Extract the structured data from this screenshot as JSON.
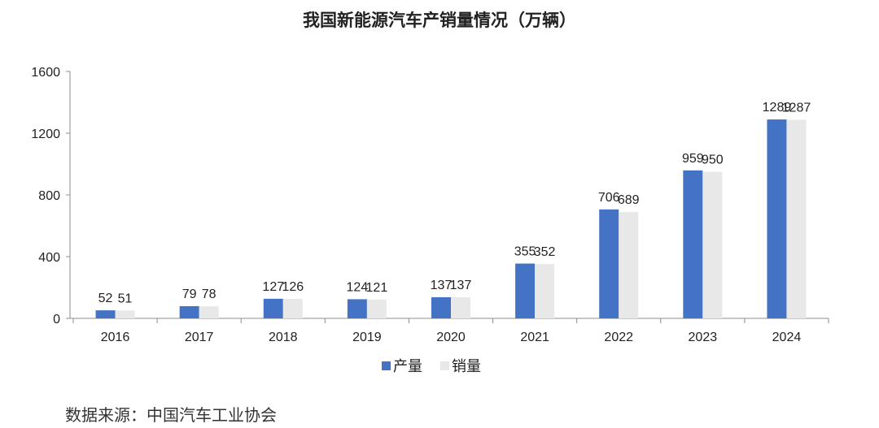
{
  "chart_data": {
    "type": "bar",
    "title": "我国新能源汽车产销量情况（万辆）",
    "categories": [
      "2016",
      "2017",
      "2018",
      "2019",
      "2020",
      "2021",
      "2022",
      "2023",
      "2024"
    ],
    "series": [
      {
        "name": "产量",
        "values": [
          52,
          79,
          127,
          124,
          137,
          355,
          706,
          959,
          1289
        ],
        "color": "#4472C4"
      },
      {
        "name": "销量",
        "values": [
          51,
          78,
          126,
          121,
          137,
          352,
          689,
          950,
          1287
        ],
        "color": "#E8E8E8"
      }
    ],
    "ylim": [
      0,
      1600
    ],
    "yticks": [
      0,
      400,
      800,
      1200,
      1600
    ],
    "grid": false,
    "legend_position": "bottom"
  },
  "source": "数据来源：中国汽车工业协会"
}
